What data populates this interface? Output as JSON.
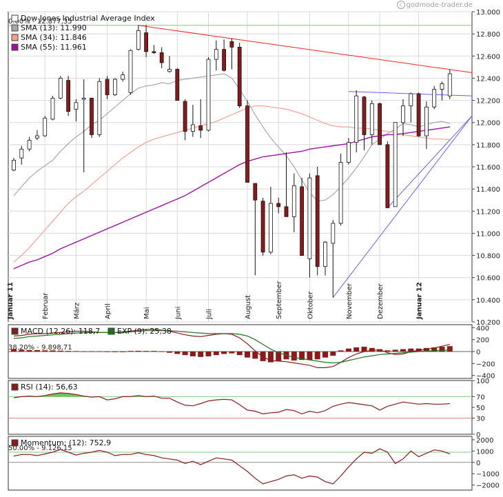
{
  "watermark": "godmode-trader.de",
  "colors": {
    "up": "#ffffff",
    "down": "#8b1a1a",
    "sma13": "#a8a8a8",
    "sma34": "#f4a090",
    "sma55": "#a010a0",
    "resistance": "#ff2020",
    "channel": "#6060ff",
    "macd": "#8b1a1a",
    "signal": "#207020",
    "level": "#80cc80",
    "rsi_low": "#e08080",
    "grid": "#d8d8d8",
    "axis": "#404040"
  },
  "chart_data": [
    {
      "type": "candlestick",
      "legend": [
        {
          "name": "Dow Jones Industrial Average Index",
          "swatch": "#ffffff"
        },
        {
          "name": "SMA (13): 11.990",
          "swatch": "#a8a8a8"
        },
        {
          "name": "SMA (34): 11.846",
          "swatch": "#f4a090"
        },
        {
          "name": "SMA (55): 11.961",
          "swatch": "#a010a0"
        }
      ],
      "fib_label_top": "0.00% - 12.877,35",
      "fib_level": 12877,
      "ylim": [
        10200,
        13000
      ],
      "yticks": [
        10200,
        10400,
        10600,
        10800,
        11000,
        11200,
        11400,
        11600,
        11800,
        12000,
        12200,
        12400,
        12600,
        12800,
        13000
      ],
      "ytick_labels": [
        "10.200",
        "10.400",
        "10.600",
        "10.800",
        "11.000",
        "11.200",
        "11.400",
        "11.600",
        "11.800",
        "12.000",
        "12.200",
        "12.400",
        "12.600",
        "12.800",
        "13.000"
      ],
      "months": [
        "Januar 11",
        "Februar",
        "März",
        "April",
        "Mai",
        "Juni",
        "Juli",
        "August",
        "September",
        "Oktober",
        "November",
        "Dezember",
        "Januar 12"
      ],
      "month_week_index": [
        0,
        4,
        8,
        12,
        17,
        21,
        25,
        30,
        34,
        38,
        43,
        47,
        52
      ],
      "candles": [
        [
          11570,
          11680,
          11560,
          11660
        ],
        [
          11680,
          11790,
          11620,
          11760
        ],
        [
          11760,
          11870,
          11740,
          11840
        ],
        [
          11860,
          11930,
          11840,
          11880
        ],
        [
          11880,
          12060,
          11870,
          12040
        ],
        [
          12030,
          12240,
          12020,
          12220
        ],
        [
          12220,
          12420,
          12210,
          12400
        ],
        [
          12380,
          12420,
          12060,
          12100
        ],
        [
          12120,
          12210,
          12010,
          12180
        ],
        [
          12210,
          12390,
          11550,
          12220
        ],
        [
          12220,
          12210,
          11860,
          11890
        ],
        [
          11890,
          12400,
          11870,
          12370
        ],
        [
          12390,
          12420,
          12210,
          12250
        ],
        [
          12250,
          12400,
          12240,
          12390
        ],
        [
          12390,
          12460,
          12370,
          12430
        ],
        [
          12270,
          12660,
          12250,
          12650
        ],
        [
          12660,
          12880,
          12650,
          12830
        ],
        [
          12810,
          12880,
          12590,
          12640
        ],
        [
          12640,
          12700,
          12620,
          12630
        ],
        [
          12630,
          12680,
          12490,
          12540
        ],
        [
          12460,
          12600,
          12450,
          12480
        ],
        [
          12480,
          12490,
          12200,
          12200
        ],
        [
          12190,
          12210,
          11840,
          11920
        ],
        [
          11920,
          12160,
          11870,
          11980
        ],
        [
          11970,
          12210,
          11860,
          11930
        ],
        [
          11930,
          12590,
          11920,
          12570
        ],
        [
          12570,
          12740,
          12470,
          12660
        ],
        [
          12660,
          12750,
          12460,
          12470
        ],
        [
          12730,
          12760,
          12480,
          12680
        ],
        [
          12680,
          12720,
          12130,
          12150
        ],
        [
          12150,
          12200,
          11460,
          11460
        ],
        [
          11450,
          11450,
          10620,
          11300
        ],
        [
          11290,
          11320,
          10800,
          10830
        ],
        [
          10830,
          11420,
          10810,
          11270
        ],
        [
          11270,
          11320,
          11180,
          11240
        ],
        [
          11240,
          11730,
          11150,
          11150
        ],
        [
          11150,
          11540,
          11010,
          11430
        ],
        [
          11420,
          11500,
          10800,
          10800
        ],
        [
          10770,
          11540,
          10600,
          11500
        ],
        [
          11520,
          11600,
          10620,
          10700
        ],
        [
          10700,
          10930,
          10620,
          10920
        ],
        [
          10910,
          11120,
          10420,
          11090
        ],
        [
          11090,
          11720,
          11070,
          11640
        ],
        [
          11640,
          11860,
          11620,
          11820
        ],
        [
          11820,
          12290,
          11730,
          12240
        ],
        [
          12230,
          12240,
          11750,
          11890
        ],
        [
          11890,
          12200,
          11800,
          12170
        ],
        [
          12170,
          12180,
          11800,
          11800
        ],
        [
          11800,
          11830,
          11230,
          11230
        ],
        [
          11240,
          12000,
          11240,
          12000
        ],
        [
          12000,
          12210,
          11880,
          12150
        ],
        [
          12150,
          12270,
          12000,
          12260
        ],
        [
          12260,
          12270,
          11870,
          11880
        ],
        [
          11880,
          12190,
          11760,
          12140
        ],
        [
          12140,
          12330,
          12120,
          12300
        ],
        [
          12300,
          12370,
          12200,
          12350
        ],
        [
          12240,
          12480,
          12210,
          12440
        ]
      ],
      "sma13": [
        11340,
        11420,
        11500,
        11560,
        11610,
        11660,
        11740,
        11810,
        11870,
        11920,
        11980,
        12020,
        12080,
        12140,
        12200,
        12260,
        12310,
        12330,
        12340,
        12360,
        12350,
        12380,
        12390,
        12400,
        12410,
        12420,
        12430,
        12440,
        12400,
        12300,
        12190,
        12070,
        11960,
        11860,
        11780,
        11700,
        11600,
        11480,
        11370,
        11290,
        11300,
        11350,
        11420,
        11500,
        11590,
        11690,
        11800,
        11850,
        11900,
        11940,
        11990,
        11980,
        11960,
        11980,
        12000,
        12010,
        11990
      ],
      "sma34": [
        10740,
        10800,
        10870,
        10950,
        11030,
        11110,
        11190,
        11270,
        11330,
        11380,
        11440,
        11500,
        11560,
        11620,
        11680,
        11730,
        11780,
        11820,
        11850,
        11870,
        11890,
        11910,
        11930,
        11950,
        11970,
        11990,
        12010,
        12040,
        12070,
        12100,
        12130,
        12150,
        12150,
        12140,
        12130,
        12120,
        12100,
        12080,
        12050,
        12020,
        11990,
        11970,
        11960,
        11960,
        11950,
        11950,
        11940,
        11930,
        11920,
        11910,
        11890,
        11880,
        11870,
        11860,
        11850,
        11850,
        11846
      ],
      "sma55": [
        10680,
        10710,
        10740,
        10760,
        10790,
        10820,
        10860,
        10890,
        10920,
        10950,
        10980,
        11010,
        11040,
        11070,
        11100,
        11130,
        11160,
        11190,
        11220,
        11250,
        11280,
        11310,
        11340,
        11380,
        11420,
        11460,
        11500,
        11540,
        11580,
        11620,
        11650,
        11670,
        11690,
        11700,
        11710,
        11720,
        11730,
        11740,
        11760,
        11770,
        11780,
        11790,
        11800,
        11810,
        11830,
        11850,
        11870,
        11880,
        11890,
        11890,
        11900,
        11910,
        11920,
        11930,
        11940,
        11950,
        11961
      ],
      "resistance_line": {
        "from": [
          16,
          12877
        ],
        "to": [
          62,
          12450
        ]
      },
      "channel_top": {
        "from": [
          43,
          12280
        ],
        "to": [
          62,
          12240
        ]
      },
      "channel_bottom": {
        "from": [
          41,
          10420
        ],
        "to": [
          62,
          12060
        ]
      },
      "channel_bottom2": {
        "from": [
          48,
          11230
        ],
        "to": [
          62,
          12060
        ]
      }
    },
    {
      "type": "bar+line",
      "legend": [
        {
          "name": "MACD (12,26): 118,7",
          "swatch": "#8b1a1a"
        },
        {
          "name": "EXP (9): 25,38",
          "swatch": "#207020"
        }
      ],
      "fib_label": "38.20% - 9.898,71",
      "ylim": [
        -450,
        450
      ],
      "yticks": [
        -400,
        -200,
        0,
        200,
        400
      ],
      "ytick_labels": [
        "−400",
        "−200",
        "0",
        "200",
        "400"
      ],
      "histogram": [
        40,
        30,
        25,
        25,
        20,
        20,
        15,
        10,
        8,
        5,
        5,
        5,
        3,
        2,
        2,
        10,
        12,
        10,
        10,
        5,
        -20,
        -40,
        -60,
        -80,
        -90,
        -80,
        -60,
        -40,
        -30,
        -60,
        -100,
        -120,
        -160,
        -180,
        -160,
        -130,
        -150,
        -140,
        -140,
        -130,
        -100,
        -70,
        20,
        50,
        70,
        80,
        60,
        40,
        20,
        30,
        40,
        50,
        50,
        60,
        70,
        80,
        90
      ],
      "macd": [
        260,
        270,
        290,
        300,
        300,
        310,
        320,
        330,
        340,
        340,
        330,
        320,
        320,
        320,
        330,
        340,
        360,
        370,
        370,
        360,
        340,
        310,
        280,
        260,
        250,
        270,
        290,
        300,
        290,
        230,
        130,
        10,
        -90,
        -150,
        -160,
        -170,
        -190,
        -210,
        -230,
        -270,
        -270,
        -250,
        -180,
        -100,
        -40,
        0,
        20,
        30,
        -20,
        -50,
        -40,
        0,
        20,
        40,
        60,
        90,
        119
      ],
      "signal": [
        220,
        230,
        250,
        260,
        270,
        280,
        290,
        300,
        310,
        320,
        320,
        320,
        320,
        320,
        320,
        330,
        340,
        350,
        350,
        350,
        350,
        340,
        330,
        320,
        310,
        300,
        300,
        300,
        300,
        290,
        260,
        200,
        120,
        40,
        -20,
        -60,
        -100,
        -120,
        -140,
        -160,
        -180,
        -190,
        -180,
        -150,
        -120,
        -90,
        -70,
        -50,
        -40,
        -30,
        -20,
        -10,
        0,
        10,
        15,
        20,
        25
      ]
    },
    {
      "type": "line",
      "legend": [
        {
          "name": "RSI (14): 56,63",
          "swatch": "#8b1a1a"
        }
      ],
      "ylim": [
        0,
        100
      ],
      "yticks": [
        0,
        30,
        50,
        70,
        100
      ],
      "ytick_labels": [
        "0",
        "30",
        "50",
        "70",
        "100"
      ],
      "level_high": 70,
      "level_low": 30,
      "rsi": [
        68,
        70,
        71,
        70,
        72,
        75,
        77,
        76,
        74,
        71,
        69,
        70,
        64,
        66,
        70,
        70,
        72,
        70,
        71,
        67,
        67,
        60,
        54,
        53,
        57,
        62,
        64,
        65,
        64,
        55,
        45,
        43,
        38,
        40,
        41,
        46,
        44,
        38,
        43,
        40,
        44,
        52,
        56,
        59,
        57,
        55,
        53,
        45,
        52,
        56,
        60,
        58,
        56,
        57,
        56,
        56,
        57
      ]
    },
    {
      "type": "line",
      "legend": [
        {
          "name": "Momentum: (12): 752,9",
          "swatch": "#8b1a1a"
        }
      ],
      "fib_label": "50.00% - 9.126,15",
      "ylim": [
        -2450,
        2300
      ],
      "yticks": [
        -2000,
        -1000,
        0,
        1000,
        2000
      ],
      "ytick_labels": [
        "−2000",
        "−1000",
        "0",
        "1000",
        "2000"
      ],
      "level": 900,
      "momentum": [
        560,
        700,
        700,
        600,
        750,
        900,
        1150,
        900,
        650,
        800,
        900,
        1050,
        900,
        600,
        700,
        700,
        850,
        700,
        600,
        400,
        300,
        200,
        -100,
        100,
        -200,
        100,
        400,
        300,
        200,
        -300,
        -800,
        -1400,
        -1900,
        -1700,
        -1500,
        -1200,
        -1100,
        -1400,
        -1200,
        -1300,
        -1700,
        -1900,
        -1200,
        -400,
        300,
        900,
        800,
        1200,
        900,
        -100,
        300,
        1000,
        500,
        800,
        1100,
        1000,
        753
      ]
    }
  ],
  "month_labels_positions_note": ""
}
